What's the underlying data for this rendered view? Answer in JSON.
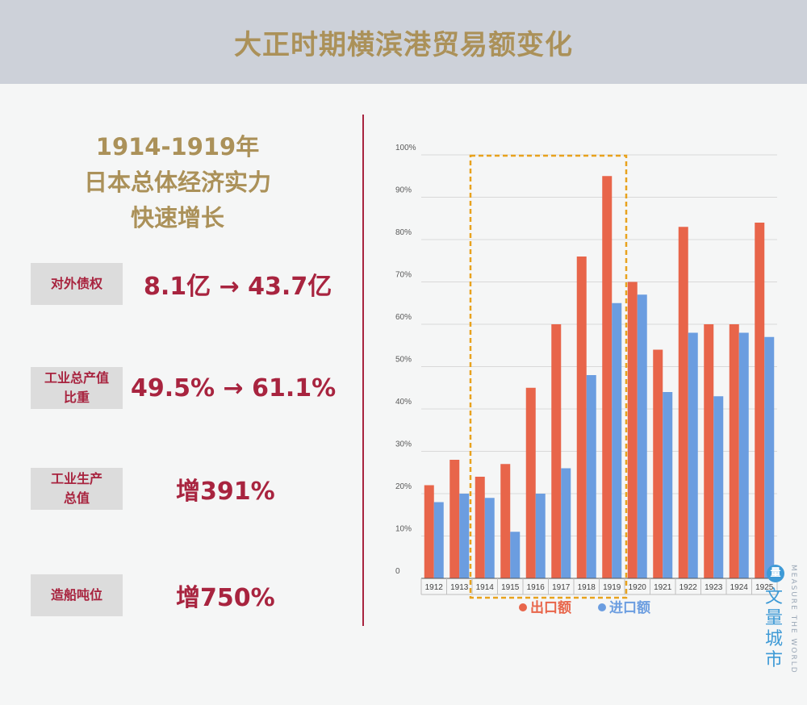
{
  "header": {
    "title": "大正时期横滨港贸易额变化"
  },
  "left": {
    "subtitle_lines": [
      "1914-1919年",
      "日本总体经济实力",
      "快速增长"
    ],
    "stats": [
      {
        "label": "对外债权",
        "value": "8.1亿 → 43.7亿"
      },
      {
        "label": "工业总产值比重",
        "value": "49.5% → 61.1%"
      },
      {
        "label": "工业生产总值",
        "value": "增391%"
      },
      {
        "label": "造船吨位",
        "value": "增750%"
      }
    ]
  },
  "chart_data": {
    "type": "bar",
    "categories": [
      "1912",
      "1913",
      "1914",
      "1915",
      "1916",
      "1917",
      "1918",
      "1919",
      "1920",
      "1921",
      "1922",
      "1923",
      "1924",
      "1925"
    ],
    "series": [
      {
        "name": "出口额",
        "color": "#e8654a",
        "values": [
          22,
          28,
          24,
          27,
          45,
          60,
          76,
          95,
          70,
          54,
          83,
          60,
          60,
          84
        ]
      },
      {
        "name": "进口额",
        "color": "#6b9de0",
        "values": [
          18,
          20,
          19,
          11,
          20,
          26,
          48,
          65,
          67,
          44,
          58,
          43,
          58,
          57
        ]
      }
    ],
    "y_ticks": [
      "0",
      "10%",
      "20%",
      "30%",
      "40%",
      "50%",
      "60%",
      "70%",
      "80%",
      "90%",
      "100%"
    ],
    "ylim": [
      0,
      100
    ],
    "grid": true,
    "legend_position": "bottom",
    "highlight": {
      "from": "1914",
      "to": "1919",
      "color": "#e8a21d"
    }
  },
  "watermark": {
    "icon": "量",
    "cn": [
      "文",
      "量",
      "城",
      "市"
    ],
    "en": "MEASURE THE WORLD"
  }
}
